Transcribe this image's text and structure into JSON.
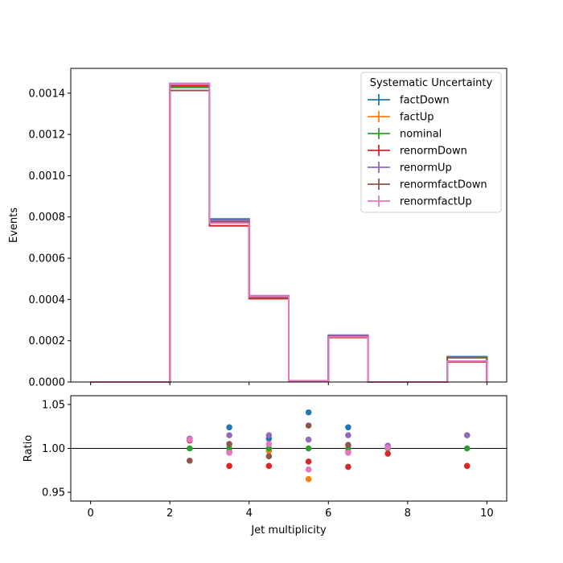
{
  "chart_data": [
    {
      "type": "line",
      "panel": "main",
      "xlabel": "",
      "ylabel": "Events",
      "xlim": [
        -0.5,
        10.5
      ],
      "ylim": [
        0,
        0.00152
      ],
      "yticks": [
        "0.0000",
        "0.0002",
        "0.0004",
        "0.0006",
        "0.0008",
        "0.0010",
        "0.0012",
        "0.0014"
      ],
      "bin_edges": [
        0,
        1,
        2,
        3,
        4,
        5,
        6,
        7,
        8,
        9,
        10
      ],
      "legend": {
        "title": "Systematic Uncertainty",
        "placement": "top-right"
      },
      "series": [
        {
          "name": "factDown",
          "color": "#1f77b4",
          "values": [
            0,
            0,
            0.001447,
            0.00079,
            0.000417,
            5.1e-06,
            0.000227,
            0,
            0,
            0.000123
          ]
        },
        {
          "name": "factUp",
          "color": "#ff7f0e",
          "values": [
            0,
            0,
            0.001428,
            0.000773,
            0.00041,
            4.8e-06,
            0.000218,
            0,
            0,
            0.000117
          ]
        },
        {
          "name": "nominal",
          "color": "#2ca02c",
          "values": [
            0,
            0,
            0.001428,
            0.000772,
            0.000412,
            5e-06,
            0.000221,
            0,
            0,
            0.00012
          ]
        },
        {
          "name": "renormDown",
          "color": "#d62728",
          "values": [
            0,
            0,
            0.001435,
            0.000757,
            0.000404,
            4.9e-06,
            0.000216,
            0,
            0,
            9.8e-05
          ]
        },
        {
          "name": "renormUp",
          "color": "#9467bd",
          "values": [
            0,
            0,
            0.001443,
            0.000785,
            0.000418,
            5.1e-06,
            0.000226,
            0,
            0,
            0.000121
          ]
        },
        {
          "name": "renormfactDown",
          "color": "#8c564b",
          "values": [
            0,
            0,
            0.001413,
            0.000777,
            0.000409,
            5.2e-06,
            0.000222,
            0,
            0,
            0.00012
          ]
        },
        {
          "name": "renormfactUp",
          "color": "#e377c2",
          "values": [
            0,
            0,
            0.001446,
            0.00077,
            0.000415,
            4.9e-06,
            0.000219,
            0,
            0,
            0.000102
          ]
        }
      ]
    },
    {
      "type": "scatter",
      "panel": "ratio",
      "xlabel": "Jet multiplicity",
      "ylabel": "Ratio",
      "xlim": [
        -0.5,
        10.5
      ],
      "ylim": [
        0.94,
        1.06
      ],
      "xticks": [
        "0",
        "2",
        "4",
        "6",
        "8",
        "10"
      ],
      "yticks": [
        "0.95",
        "1.00",
        "1.05"
      ],
      "reference_line": 1.0,
      "x": [
        2.5,
        3.5,
        4.5,
        5.5,
        6.5,
        7.5,
        9.5
      ],
      "series": [
        {
          "name": "factDown",
          "color": "#1f77b4",
          "values": [
            1.011,
            1.024,
            1.011,
            1.041,
            1.024,
            1.002,
            1.015
          ]
        },
        {
          "name": "factUp",
          "color": "#ff7f0e",
          "values": [
            null,
            0.996,
            0.997,
            0.965,
            0.996,
            null,
            null
          ]
        },
        {
          "name": "nominal",
          "color": "#2ca02c",
          "values": [
            1.0,
            1.0,
            1.0,
            1.0,
            1.0,
            1.0,
            1.0
          ]
        },
        {
          "name": "renormDown",
          "color": "#d62728",
          "values": [
            1.009,
            0.98,
            0.98,
            0.985,
            0.979,
            0.994,
            0.98
          ]
        },
        {
          "name": "renormUp",
          "color": "#9467bd",
          "values": [
            1.011,
            1.015,
            1.015,
            1.01,
            1.015,
            1.003,
            1.015
          ]
        },
        {
          "name": "renormfactDown",
          "color": "#8c564b",
          "values": [
            0.986,
            1.005,
            0.991,
            1.026,
            1.004,
            1.001,
            null
          ]
        },
        {
          "name": "renormfactUp",
          "color": "#e377c2",
          "values": [
            1.01,
            0.995,
            1.005,
            0.976,
            0.995,
            1.001,
            null
          ]
        }
      ]
    }
  ]
}
